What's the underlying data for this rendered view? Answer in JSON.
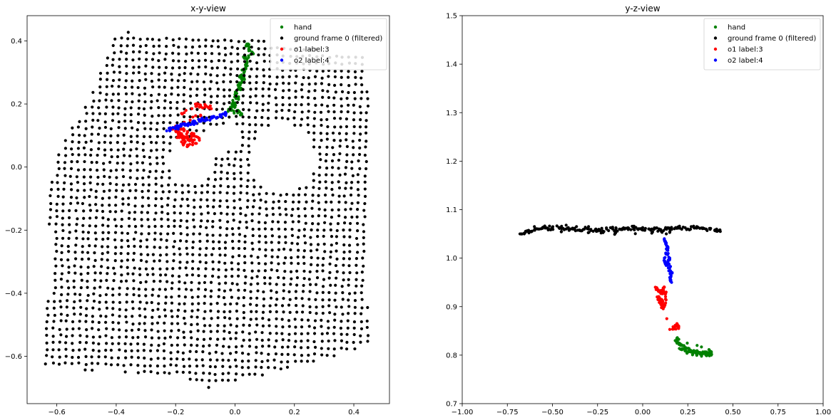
{
  "chart_data": [
    {
      "type": "scatter",
      "title": "x-y-view",
      "xlim": [
        -0.7,
        0.52
      ],
      "ylim": [
        -0.75,
        0.48
      ],
      "xticks": [
        -0.6,
        -0.4,
        -0.2,
        0.0,
        0.2,
        0.4
      ],
      "xtick_labels": [
        "−0.6",
        "−0.4",
        "−0.2",
        "0.0",
        "0.2",
        "0.4"
      ],
      "yticks": [
        -0.6,
        -0.4,
        -0.2,
        0.0,
        0.2,
        0.4
      ],
      "ytick_labels": [
        "−0.6",
        "−0.4",
        "−0.2",
        "0.0",
        "0.2",
        "0.4"
      ],
      "legend_position": "top-right",
      "grid": false,
      "series": [
        {
          "name": "hand",
          "color": "#008000",
          "points": [
            [
              0.04,
              0.39
            ],
            [
              0.05,
              0.37
            ],
            [
              0.06,
              0.36
            ],
            [
              0.03,
              0.35
            ],
            [
              0.04,
              0.33
            ],
            [
              0.03,
              0.31
            ],
            [
              0.02,
              0.29
            ],
            [
              0.03,
              0.28
            ],
            [
              0.01,
              0.26
            ],
            [
              0.02,
              0.25
            ],
            [
              0.0,
              0.23
            ],
            [
              0.01,
              0.22
            ],
            [
              -0.01,
              0.2
            ],
            [
              0.0,
              0.19
            ],
            [
              -0.02,
              0.18
            ],
            [
              0.02,
              0.17
            ],
            [
              0.01,
              0.18
            ]
          ]
        },
        {
          "name": "ground frame 0 (filtered)",
          "color": "#000000",
          "polygon": [
            [
              -0.37,
              0.43
            ],
            [
              0.05,
              0.41
            ],
            [
              0.43,
              0.35
            ],
            [
              0.46,
              0.2
            ],
            [
              0.44,
              -0.1
            ],
            [
              0.45,
              -0.4
            ],
            [
              0.45,
              -0.57
            ],
            [
              0.1,
              -0.66
            ],
            [
              -0.09,
              -0.7
            ],
            [
              -0.2,
              -0.67
            ],
            [
              -0.36,
              -0.65
            ],
            [
              -0.65,
              -0.64
            ],
            [
              -0.62,
              -0.3
            ],
            [
              -0.63,
              -0.1
            ],
            [
              -0.6,
              0.05
            ],
            [
              -0.5,
              0.2
            ],
            [
              -0.4,
              0.42
            ]
          ],
          "holes": [
            {
              "type": "circle",
              "cx": 0.16,
              "cy": 0.03,
              "r": 0.11
            },
            {
              "type": "circle",
              "cx": -0.15,
              "cy": 0.02,
              "r": 0.075
            },
            {
              "type": "band",
              "from": [
                -0.14,
                0.05
              ],
              "to": [
                -0.02,
                0.1
              ],
              "width": 0.085
            }
          ]
        },
        {
          "name": "o1 label:3",
          "color": "#ff0000",
          "points": [
            [
              -0.18,
              0.17
            ],
            [
              -0.13,
              0.2
            ],
            [
              -0.12,
              0.19
            ],
            [
              -0.1,
              0.195
            ],
            [
              -0.08,
              0.185
            ],
            [
              -0.2,
              0.13
            ],
            [
              -0.18,
              0.12
            ],
            [
              -0.16,
              0.11
            ],
            [
              -0.14,
              0.1
            ],
            [
              -0.12,
              0.085
            ],
            [
              -0.19,
              0.1
            ],
            [
              -0.17,
              0.09
            ],
            [
              -0.15,
              0.085
            ],
            [
              -0.2,
              0.115
            ],
            [
              -0.18,
              0.08
            ],
            [
              -0.16,
              0.07
            ],
            [
              -0.13,
              0.075
            ],
            [
              -0.21,
              0.12
            ]
          ]
        },
        {
          "name": "o2 label:4",
          "color": "#0000ff",
          "points": [
            [
              -0.23,
              0.115
            ],
            [
              -0.2,
              0.125
            ],
            [
              -0.17,
              0.135
            ],
            [
              -0.14,
              0.14
            ],
            [
              -0.11,
              0.15
            ],
            [
              -0.08,
              0.155
            ],
            [
              -0.05,
              0.16
            ],
            [
              -0.03,
              0.17
            ],
            [
              -0.22,
              0.12
            ],
            [
              -0.19,
              0.13
            ],
            [
              -0.12,
              0.145
            ],
            [
              -0.06,
              0.158
            ]
          ]
        }
      ]
    },
    {
      "type": "scatter",
      "title": "y-z-view",
      "xlim": [
        -1.0,
        1.0
      ],
      "ylim": [
        0.7,
        1.5
      ],
      "xticks": [
        -1.0,
        -0.75,
        -0.5,
        -0.25,
        0.0,
        0.25,
        0.5,
        0.75,
        1.0
      ],
      "xtick_labels": [
        "−1.00",
        "−0.75",
        "−0.50",
        "−0.25",
        "0.00",
        "0.25",
        "0.50",
        "0.75",
        "1.00"
      ],
      "yticks": [
        0.7,
        0.8,
        0.9,
        1.0,
        1.1,
        1.2,
        1.3,
        1.4,
        1.5
      ],
      "ytick_labels": [
        "0.7",
        "0.8",
        "0.9",
        "1.0",
        "1.1",
        "1.2",
        "1.3",
        "1.4",
        "1.5"
      ],
      "legend_position": "top-right",
      "grid": false,
      "series": [
        {
          "name": "hand",
          "color": "#008000",
          "points": [
            [
              0.18,
              0.83
            ],
            [
              0.2,
              0.825
            ],
            [
              0.22,
              0.82
            ],
            [
              0.24,
              0.815
            ],
            [
              0.26,
              0.81
            ],
            [
              0.28,
              0.808
            ],
            [
              0.3,
              0.806
            ],
            [
              0.32,
              0.805
            ],
            [
              0.34,
              0.806
            ],
            [
              0.36,
              0.804
            ],
            [
              0.38,
              0.8
            ],
            [
              0.37,
              0.81
            ],
            [
              0.19,
              0.835
            ],
            [
              0.21,
              0.812
            ],
            [
              0.25,
              0.806
            ],
            [
              0.3,
              0.8
            ],
            [
              0.35,
              0.8
            ],
            [
              0.38,
              0.807
            ]
          ]
        },
        {
          "name": "ground frame 0 (filtered)",
          "color": "#000000",
          "points": [
            [
              -0.68,
              1.05
            ],
            [
              -0.65,
              1.053
            ],
            [
              -0.62,
              1.055
            ],
            [
              -0.58,
              1.06
            ],
            [
              -0.54,
              1.062
            ],
            [
              -0.5,
              1.06
            ],
            [
              -0.45,
              1.061
            ],
            [
              -0.4,
              1.06
            ],
            [
              -0.35,
              1.058
            ],
            [
              -0.3,
              1.06
            ],
            [
              -0.25,
              1.057
            ],
            [
              -0.2,
              1.06
            ],
            [
              -0.15,
              1.058
            ],
            [
              -0.1,
              1.06
            ],
            [
              -0.05,
              1.06
            ],
            [
              0.0,
              1.058
            ],
            [
              0.05,
              1.06
            ],
            [
              0.1,
              1.059
            ],
            [
              0.15,
              1.06
            ],
            [
              0.2,
              1.062
            ],
            [
              0.25,
              1.06
            ],
            [
              0.3,
              1.062
            ],
            [
              0.35,
              1.06
            ],
            [
              0.4,
              1.058
            ],
            [
              0.43,
              1.055
            ],
            [
              -0.6,
              1.065
            ],
            [
              -0.3,
              1.065
            ],
            [
              0.0,
              1.063
            ],
            [
              0.3,
              1.065
            ],
            [
              -0.45,
              1.055
            ],
            [
              -0.15,
              1.052
            ],
            [
              0.15,
              1.053
            ]
          ]
        },
        {
          "name": "o1 label:3",
          "color": "#ff0000",
          "points": [
            [
              0.07,
              0.94
            ],
            [
              0.08,
              0.935
            ],
            [
              0.1,
              0.93
            ],
            [
              0.12,
              0.94
            ],
            [
              0.09,
              0.92
            ],
            [
              0.11,
              0.91
            ],
            [
              0.12,
              0.9
            ],
            [
              0.13,
              0.93
            ],
            [
              0.08,
              0.92
            ],
            [
              0.1,
              0.905
            ],
            [
              0.17,
              0.855
            ],
            [
              0.18,
              0.86
            ],
            [
              0.19,
              0.865
            ],
            [
              0.2,
              0.858
            ],
            [
              0.15,
              0.853
            ]
          ]
        },
        {
          "name": "o2 label:4",
          "color": "#0000ff",
          "points": [
            [
              0.12,
              1.04
            ],
            [
              0.13,
              1.03
            ],
            [
              0.14,
              1.02
            ],
            [
              0.13,
              1.01
            ],
            [
              0.15,
              1.0
            ],
            [
              0.14,
              0.99
            ],
            [
              0.15,
              0.98
            ],
            [
              0.16,
              0.97
            ],
            [
              0.15,
              0.96
            ],
            [
              0.16,
              0.95
            ],
            [
              0.12,
              1.0
            ],
            [
              0.13,
              0.985
            ]
          ]
        }
      ]
    }
  ]
}
